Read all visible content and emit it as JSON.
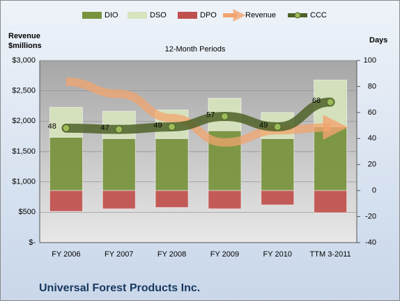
{
  "chart_data": {
    "type": "bar",
    "title": "12-Month Periods",
    "y_label": [
      "Revenue",
      "$millions"
    ],
    "y2_label": "Days",
    "footer": "Universal Forest Products Inc.",
    "categories": [
      "FY 2006",
      "FY 2007",
      "FY 2008",
      "FY 2009",
      "FY 2010",
      "TTM 3-2011"
    ],
    "series": [
      {
        "name": "DIO",
        "color": "#77933c",
        "axis": "y2",
        "kind": "bar",
        "values": [
          41,
          40,
          40,
          46,
          40,
          49
        ]
      },
      {
        "name": "DSO",
        "color": "#d7e4bd",
        "axis": "y2",
        "kind": "bar",
        "values": [
          23,
          21,
          22,
          25,
          20,
          36
        ]
      },
      {
        "name": "DPO",
        "color": "#c0504d",
        "axis": "y2",
        "kind": "bar",
        "values": [
          -16,
          -14,
          -13,
          -14,
          -11,
          -17
        ]
      },
      {
        "name": "Revenue",
        "color": "#f2a46e",
        "kind": "arrow",
        "values": [
          2650,
          2450,
          2050,
          1650,
          1850,
          1900
        ]
      },
      {
        "name": "CCC",
        "color": "#4f6228",
        "axis": "y2",
        "kind": "line",
        "values": [
          48,
          47,
          49,
          57,
          49,
          68
        ]
      }
    ],
    "ylim": [
      0,
      3000
    ],
    "yticks": [
      {
        "value": 0,
        "label": "$-"
      },
      {
        "value": 500,
        "label": "$500"
      },
      {
        "value": 1000,
        "label": "$1,000"
      },
      {
        "value": 1500,
        "label": "$1,500"
      },
      {
        "value": 2000,
        "label": "$2,000"
      },
      {
        "value": 2500,
        "label": "$2,500"
      },
      {
        "value": 3000,
        "label": "$3,000"
      }
    ],
    "y2lim": [
      -40,
      100
    ],
    "y2ticks": [
      -40,
      -20,
      0,
      20,
      40,
      60,
      80,
      100
    ],
    "grid": true,
    "legend": "top"
  }
}
